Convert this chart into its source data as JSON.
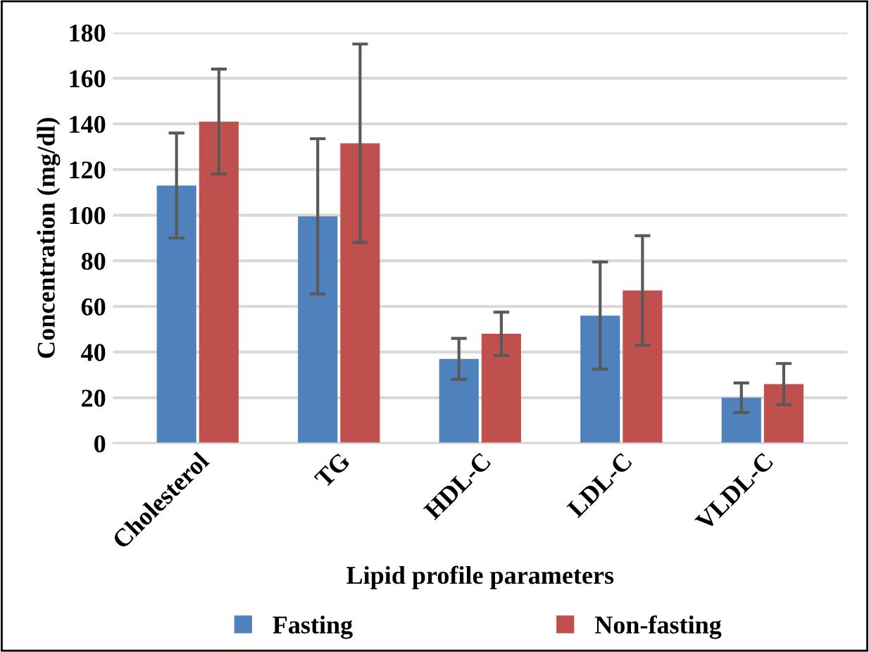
{
  "chart_data": {
    "type": "bar",
    "xlabel": "Lipid profile parameters",
    "ylabel": "Concentration (mg/dl)",
    "categories": [
      "Cholesterol",
      "TG",
      "HDL-C",
      "LDL-C",
      "VLDL-C"
    ],
    "series": [
      {
        "name": "Fasting",
        "color": "#4f81bd",
        "values": [
          113,
          99.5,
          37,
          56,
          20
        ],
        "errors": [
          23,
          34,
          9,
          23.5,
          6.5
        ]
      },
      {
        "name": "Non-fasting",
        "color": "#c0504d",
        "values": [
          141,
          131.5,
          48,
          67,
          26
        ],
        "errors": [
          23,
          43.5,
          9.5,
          24,
          9
        ]
      }
    ],
    "ylim": [
      0,
      180
    ],
    "yticks": [
      0,
      20,
      40,
      60,
      80,
      100,
      120,
      140,
      160,
      180
    ],
    "grid": "y",
    "legend": "bottom"
  }
}
